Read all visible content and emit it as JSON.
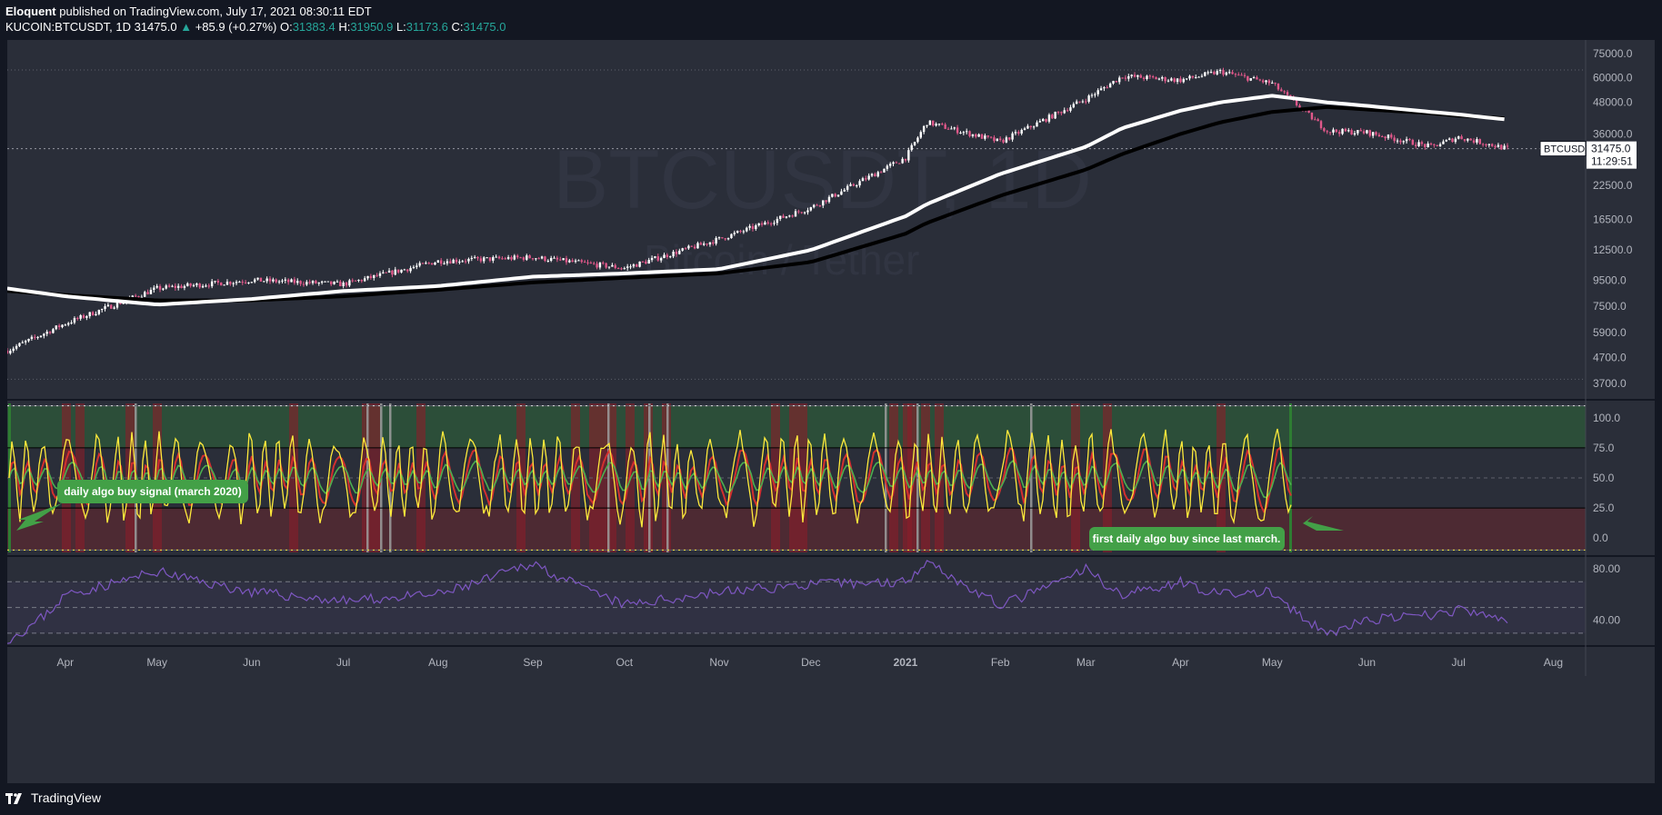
{
  "header": {
    "author": "Eloquent",
    "published": "published on TradingView.com, July 17, 2021 08:30:11 EDT",
    "symbol": "KUCOIN:BTCUSDT, 1D",
    "last": "31475.0",
    "change": "+85.9 (+0.27%)",
    "o_label": "O:",
    "o_value": "31383.4",
    "h_label": "H:",
    "h_value": "31950.9",
    "l_label": "L:",
    "l_value": "31173.6",
    "c_label": "C:",
    "c_value": "31475.0"
  },
  "watermark": {
    "ticker": "BTCUSDT, 1D",
    "name": "Bitcoin / Tether"
  },
  "price_tag": {
    "symbol": "BTCUSDT",
    "price": "31475.0",
    "countdown": "11:29:51"
  },
  "annotations": {
    "left_note": "daily algo buy signal (march 2020)",
    "right_note": "first daily algo buy since last march."
  },
  "footer": {
    "brand": "TradingView"
  },
  "colors": {
    "bg": "#2a2e39",
    "candle_up": "#ffffff",
    "candle_down": "#e0588a",
    "ma_white": "#ffffff",
    "ma_black": "#000000",
    "osc_yellow": "#ffeb3b",
    "osc_red": "#d32f2f",
    "osc_green": "#4caf50",
    "rsi": "#7e57c2",
    "note_green": "#43a047"
  },
  "chart_data": [
    {
      "type": "line",
      "title": "BTCUSDT, 1D",
      "y_scale": "log",
      "y_ticks": [
        "75000.0",
        "60000.0",
        "48000.0",
        "36000.0",
        "22500.0",
        "16500.0",
        "12500.0",
        "9500.0",
        "7500.0",
        "5900.0",
        "4700.0",
        "3700.0"
      ],
      "x_ticks": [
        "Apr",
        "May",
        "Jun",
        "Jul",
        "Aug",
        "Sep",
        "Oct",
        "Nov",
        "Dec",
        "2021",
        "Feb",
        "Mar",
        "Apr",
        "May",
        "Jun",
        "Jul",
        "Aug"
      ],
      "x": [
        "2020-03-13",
        "2020-04-01",
        "2020-05-01",
        "2020-06-01",
        "2020-07-01",
        "2020-08-01",
        "2020-09-01",
        "2020-10-01",
        "2020-11-01",
        "2020-12-01",
        "2021-01-01",
        "2021-01-08",
        "2021-02-01",
        "2021-03-01",
        "2021-03-13",
        "2021-04-01",
        "2021-04-14",
        "2021-05-01",
        "2021-05-19",
        "2021-06-01",
        "2021-06-22",
        "2021-07-01",
        "2021-07-17"
      ],
      "series": [
        {
          "values": [
            5000,
            6400,
            8800,
            9500,
            9150,
            11300,
            11700,
            10600,
            13800,
            18400,
            29000,
            40000,
            33500,
            49500,
            61000,
            58800,
            63500,
            57000,
            37000,
            36500,
            32000,
            35000,
            31475
          ]
        },
        {
          "values": [
            8800,
            8200,
            7600,
            8000,
            8600,
            9000,
            9800,
            10100,
            10500,
            12500,
            17000,
            19000,
            25000,
            32000,
            38000,
            44500,
            48000,
            51000,
            48000,
            46500,
            44000,
            43000,
            41000
          ]
        },
        {
          "values": [
            8600,
            8300,
            7900,
            7900,
            8200,
            8700,
            9300,
            9700,
            10100,
            11200,
            14500,
            16000,
            20500,
            26000,
            30000,
            36000,
            40000,
            44000,
            46000,
            45000,
            43500,
            42500,
            41500
          ]
        }
      ]
    },
    {
      "type": "line",
      "y_ticks": [
        "100.0",
        "75.0",
        "50.0",
        "25.0",
        "0.0"
      ],
      "ylim": [
        -15,
        115
      ]
    },
    {
      "type": "line",
      "y_ticks": [
        "80.00",
        "40.00"
      ],
      "ylim": [
        20,
        90
      ],
      "series": [
        {
          "values": [
            25,
            60,
            78,
            62,
            55,
            60,
            85,
            52,
            62,
            68,
            70,
            88,
            52,
            80,
            60,
            70,
            60,
            62,
            30,
            40,
            44,
            48,
            40
          ]
        }
      ]
    }
  ]
}
